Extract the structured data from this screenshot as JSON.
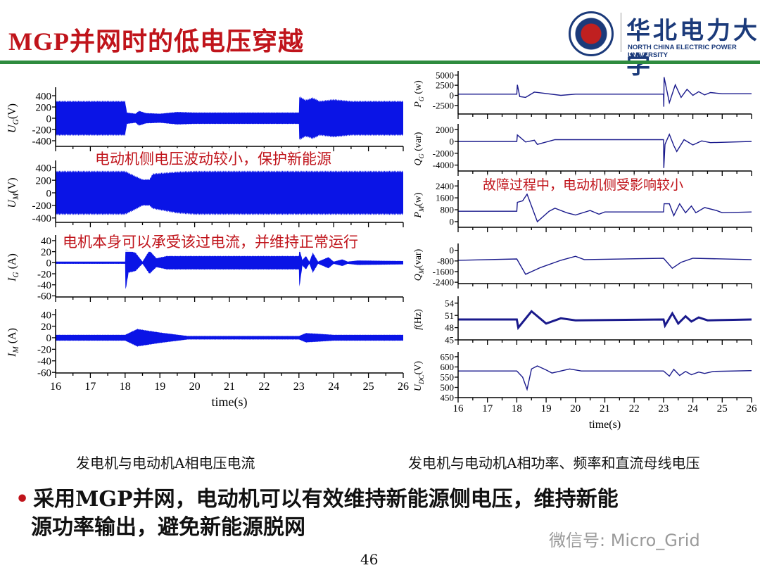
{
  "slide": {
    "title": "MGP并网时的低电压穿越",
    "logo": {
      "cn": "华北电力大学",
      "en": "NORTH CHINA ELECTRIC POWER UNIVERSITY"
    },
    "caption_left": "发电机与电动机A相电压电流",
    "caption_right": "发电机与电动机A相功率、频率和直流母线电压",
    "bullet_line1": "采用MGP并网，电动机可以有效维持新能源侧电压，维持新能",
    "bullet_line2": "源功率输出，避免新能源脱网",
    "page_number": "46",
    "watermark": "微信号: Micro_Grid",
    "notes": {
      "voltage": "电动机侧电压波动较小，保护新能源",
      "current": "电机本身可以承受该过电流，并维持正常运行",
      "power": "故障过程中，电动机侧受影响较小"
    },
    "colors": {
      "title": "#c0141b",
      "trace_left": "#0a14e6",
      "trace_right": "#1a1a8c",
      "rule": "#2e8b3e"
    }
  },
  "chart_data": [
    {
      "type": "area",
      "name": "UG",
      "ylabel": {
        "sym": "U",
        "sub": "G",
        "unit": "(V)"
      },
      "xlabel": "",
      "xlim": [
        16,
        26
      ],
      "ylim": [
        -500,
        500
      ],
      "yticks": [
        400,
        200,
        0,
        -200,
        -400
      ],
      "xticks": [],
      "envelope": [
        [
          16,
          300,
          -300
        ],
        [
          18,
          300,
          -300
        ],
        [
          18.05,
          100,
          -100
        ],
        [
          18.3,
          80,
          -80
        ],
        [
          18.4,
          130,
          -130
        ],
        [
          18.6,
          90,
          -90
        ],
        [
          19,
          80,
          -80
        ],
        [
          19.5,
          110,
          -110
        ],
        [
          20,
          100,
          -100
        ],
        [
          23,
          100,
          -100
        ],
        [
          23.01,
          380,
          -380
        ],
        [
          23.2,
          320,
          -320
        ],
        [
          23.4,
          360,
          -360
        ],
        [
          23.6,
          300,
          -300
        ],
        [
          24,
          330,
          -330
        ],
        [
          24.5,
          300,
          -300
        ],
        [
          26,
          300,
          -300
        ]
      ]
    },
    {
      "type": "area",
      "name": "UM",
      "ylabel": {
        "sym": "U",
        "sub": "M",
        "unit": "(V)"
      },
      "xlabel": "",
      "xlim": [
        16,
        26
      ],
      "ylim": [
        -470,
        470
      ],
      "yticks": [
        400,
        200,
        0,
        -200,
        -400
      ],
      "xticks": [],
      "envelope": [
        [
          16,
          340,
          -340
        ],
        [
          18,
          340,
          -340
        ],
        [
          18.3,
          260,
          -260
        ],
        [
          18.5,
          210,
          -200
        ],
        [
          18.7,
          210,
          -200
        ],
        [
          18.8,
          300,
          -250
        ],
        [
          19.5,
          330,
          -320
        ],
        [
          20,
          340,
          -340
        ],
        [
          26,
          340,
          -340
        ]
      ]
    },
    {
      "type": "area",
      "name": "IG",
      "ylabel": {
        "sym": "I",
        "sub": "G",
        "unit": " (A)"
      },
      "xlabel": "",
      "xlim": [
        16,
        26
      ],
      "ylim": [
        -62,
        45
      ],
      "yticks": [
        40,
        20,
        0,
        -20,
        -40,
        -60
      ],
      "xticks": [],
      "envelope": [
        [
          16,
          2,
          -2
        ],
        [
          18,
          2,
          -2
        ],
        [
          18.01,
          25,
          -50
        ],
        [
          18.1,
          22,
          -18
        ],
        [
          18.3,
          18,
          -15
        ],
        [
          18.5,
          2,
          -2
        ],
        [
          18.7,
          22,
          -20
        ],
        [
          18.9,
          8,
          -8
        ],
        [
          19.2,
          12,
          -12
        ],
        [
          23,
          12,
          -12
        ],
        [
          23.01,
          25,
          -45
        ],
        [
          23.1,
          5,
          -5
        ],
        [
          23.2,
          12,
          -12
        ],
        [
          23.3,
          2,
          -2
        ],
        [
          23.4,
          18,
          -18
        ],
        [
          23.55,
          2,
          -2
        ],
        [
          23.85,
          10,
          -10
        ],
        [
          24,
          2,
          -2
        ],
        [
          24.25,
          6,
          -6
        ],
        [
          24.4,
          2,
          -2
        ],
        [
          24.7,
          4,
          -4
        ],
        [
          26,
          3,
          -3
        ]
      ]
    },
    {
      "type": "area",
      "name": "IM",
      "ylabel": {
        "sym": "I",
        "sub": "M",
        "unit": " (A)"
      },
      "xlabel": "time(s)",
      "xlim": [
        16,
        26
      ],
      "ylim": [
        -61,
        45
      ],
      "yticks": [
        40,
        20,
        0,
        -20,
        -40,
        -60
      ],
      "xticks": [
        16,
        17,
        18,
        19,
        20,
        21,
        22,
        23,
        24,
        25,
        26
      ],
      "envelope": [
        [
          16,
          5,
          -5
        ],
        [
          18,
          5,
          -5
        ],
        [
          18.35,
          15,
          -15
        ],
        [
          19,
          9,
          -9
        ],
        [
          19.8,
          3,
          -3
        ],
        [
          23,
          3,
          -3
        ],
        [
          23.2,
          8,
          -8
        ],
        [
          23.5,
          7,
          -7
        ],
        [
          24,
          5,
          -5
        ],
        [
          26,
          5,
          -5
        ]
      ]
    },
    {
      "type": "line",
      "name": "PG",
      "ylabel": {
        "sym": "P",
        "sub": "G",
        "unit": " (w)"
      },
      "xlabel": "",
      "xlim": [
        16,
        26
      ],
      "ylim": [
        -4600,
        5300
      ],
      "yticks": [
        5000,
        2500,
        0,
        -2500
      ],
      "xticks": [],
      "points": [
        [
          16,
          300
        ],
        [
          18,
          300
        ],
        [
          18.02,
          2600
        ],
        [
          18.1,
          -300
        ],
        [
          18.3,
          -500
        ],
        [
          18.6,
          800
        ],
        [
          19.5,
          0
        ],
        [
          20,
          300
        ],
        [
          23,
          300
        ],
        [
          23.01,
          -2800
        ],
        [
          23.02,
          4500
        ],
        [
          23.2,
          -1800
        ],
        [
          23.4,
          2600
        ],
        [
          23.6,
          -500
        ],
        [
          23.8,
          1500
        ],
        [
          24,
          0
        ],
        [
          24.2,
          900
        ],
        [
          24.4,
          100
        ],
        [
          24.6,
          700
        ],
        [
          25,
          400
        ],
        [
          26,
          400
        ]
      ]
    },
    {
      "type": "line",
      "name": "QG",
      "ylabel": {
        "sym": "Q",
        "sub": "G",
        "unit": " (var)"
      },
      "xlabel": "",
      "xlim": [
        16,
        26
      ],
      "ylim": [
        -5000,
        2500
      ],
      "yticks": [
        2000,
        0,
        -2000,
        -4000
      ],
      "xticks": [],
      "points": [
        [
          16,
          0
        ],
        [
          18,
          0
        ],
        [
          18.02,
          1100
        ],
        [
          18.3,
          -100
        ],
        [
          18.6,
          200
        ],
        [
          18.7,
          -500
        ],
        [
          19.3,
          300
        ],
        [
          20,
          300
        ],
        [
          23,
          300
        ],
        [
          23.01,
          -4500
        ],
        [
          23.05,
          -500
        ],
        [
          23.2,
          1200
        ],
        [
          23.35,
          -700
        ],
        [
          23.45,
          -1700
        ],
        [
          23.7,
          300
        ],
        [
          24,
          -600
        ],
        [
          24.3,
          100
        ],
        [
          24.6,
          -200
        ],
        [
          26,
          0
        ]
      ]
    },
    {
      "type": "line",
      "name": "PM",
      "ylabel": {
        "sym": "P",
        "sub": "M",
        "unit": "(w)"
      },
      "xlabel": "",
      "xlim": [
        16,
        26
      ],
      "ylim": [
        -380,
        2600
      ],
      "yticks": [
        2400,
        1600,
        800,
        0
      ],
      "xticks": [],
      "points": [
        [
          16,
          700
        ],
        [
          18,
          700
        ],
        [
          18.02,
          1300
        ],
        [
          18.2,
          1400
        ],
        [
          18.35,
          1850
        ],
        [
          18.7,
          0
        ],
        [
          19.1,
          700
        ],
        [
          19.3,
          900
        ],
        [
          19.7,
          600
        ],
        [
          20,
          450
        ],
        [
          20.5,
          750
        ],
        [
          20.8,
          500
        ],
        [
          21,
          650
        ],
        [
          23,
          650
        ],
        [
          23.02,
          1200
        ],
        [
          23.2,
          1200
        ],
        [
          23.35,
          400
        ],
        [
          23.55,
          1200
        ],
        [
          23.75,
          600
        ],
        [
          23.95,
          1050
        ],
        [
          24.1,
          600
        ],
        [
          24.4,
          950
        ],
        [
          24.8,
          750
        ],
        [
          25,
          600
        ],
        [
          26,
          650
        ]
      ]
    },
    {
      "type": "line",
      "name": "QM",
      "ylabel": {
        "sym": "Q",
        "sub": "M",
        "unit": "(var)"
      },
      "xlabel": "",
      "xlim": [
        16,
        26
      ],
      "ylim": [
        -2500,
        300
      ],
      "yticks": [
        0,
        -800,
        -1600,
        -2400
      ],
      "xticks": [],
      "points": [
        [
          16,
          -750
        ],
        [
          18,
          -650
        ],
        [
          18.3,
          -1800
        ],
        [
          18.8,
          -1300
        ],
        [
          19.5,
          -750
        ],
        [
          20,
          -450
        ],
        [
          20.3,
          -700
        ],
        [
          23,
          -600
        ],
        [
          23.3,
          -1350
        ],
        [
          23.6,
          -900
        ],
        [
          24,
          -600
        ],
        [
          26,
          -700
        ]
      ]
    },
    {
      "type": "line",
      "name": "f",
      "ylabel": {
        "sym": "f",
        "sub": "",
        "unit": "(Hz)"
      },
      "xlabel": "",
      "xlim": [
        16,
        26
      ],
      "ylim": [
        45,
        55
      ],
      "yticks": [
        54,
        51,
        48,
        45
      ],
      "xticks": [],
      "points": [
        [
          16,
          50
        ],
        [
          18,
          50
        ],
        [
          18.05,
          48
        ],
        [
          18.5,
          52
        ],
        [
          19,
          49
        ],
        [
          19.5,
          50.3
        ],
        [
          20,
          49.8
        ],
        [
          23,
          50
        ],
        [
          23.05,
          48.5
        ],
        [
          23.3,
          51.5
        ],
        [
          23.5,
          49
        ],
        [
          23.75,
          50.8
        ],
        [
          23.95,
          49.5
        ],
        [
          24.2,
          50.5
        ],
        [
          24.5,
          49.8
        ],
        [
          26,
          50
        ]
      ]
    },
    {
      "type": "line",
      "name": "UDC",
      "ylabel": {
        "sym": "U",
        "sub": "DC",
        "unit": "(V)"
      },
      "xlabel": "time(s)",
      "xlim": [
        16,
        26
      ],
      "ylim": [
        450,
        660
      ],
      "yticks": [
        650,
        600,
        550,
        500,
        450
      ],
      "xticks": [
        16,
        17,
        18,
        19,
        20,
        21,
        22,
        23,
        24,
        25,
        26
      ],
      "points": [
        [
          16,
          580
        ],
        [
          18,
          580
        ],
        [
          18.2,
          550
        ],
        [
          18.35,
          490
        ],
        [
          18.5,
          590
        ],
        [
          18.7,
          605
        ],
        [
          19,
          585
        ],
        [
          19.2,
          570
        ],
        [
          19.8,
          590
        ],
        [
          20.2,
          580
        ],
        [
          23,
          580
        ],
        [
          23.2,
          555
        ],
        [
          23.35,
          588
        ],
        [
          23.55,
          558
        ],
        [
          23.75,
          578
        ],
        [
          23.95,
          562
        ],
        [
          24.2,
          575
        ],
        [
          24.4,
          568
        ],
        [
          24.7,
          578
        ],
        [
          26,
          582
        ]
      ]
    }
  ]
}
